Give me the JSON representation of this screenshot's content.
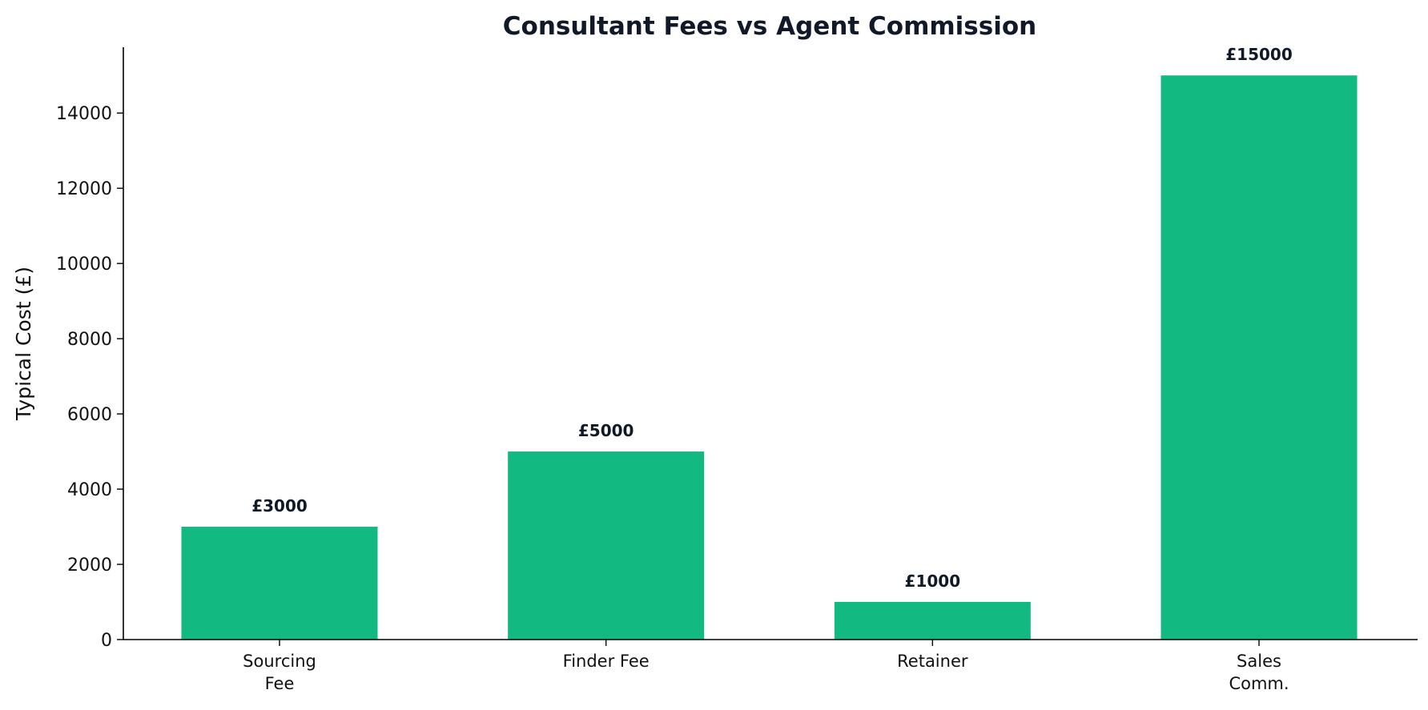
{
  "chart_data": {
    "type": "bar",
    "title": "Consultant Fees vs Agent Commission",
    "xlabel": "",
    "ylabel": "Typical Cost (£)",
    "categories": [
      [
        "Sourcing",
        "Fee"
      ],
      [
        "Finder Fee"
      ],
      [
        "Retainer"
      ],
      [
        "Sales",
        "Comm."
      ]
    ],
    "values": [
      3000,
      5000,
      1000,
      15000
    ],
    "data_labels": [
      "£3000",
      "£5000",
      "£1000",
      "£15000"
    ],
    "yticks": [
      0,
      2000,
      4000,
      6000,
      8000,
      10000,
      12000,
      14000
    ],
    "ytick_labels": [
      "0",
      "2000",
      "4000",
      "6000",
      "8000",
      "10000",
      "12000",
      "14000"
    ],
    "ylim": [
      0,
      15750
    ],
    "grid": false,
    "legend": "none",
    "bar_color": "#12b981"
  }
}
